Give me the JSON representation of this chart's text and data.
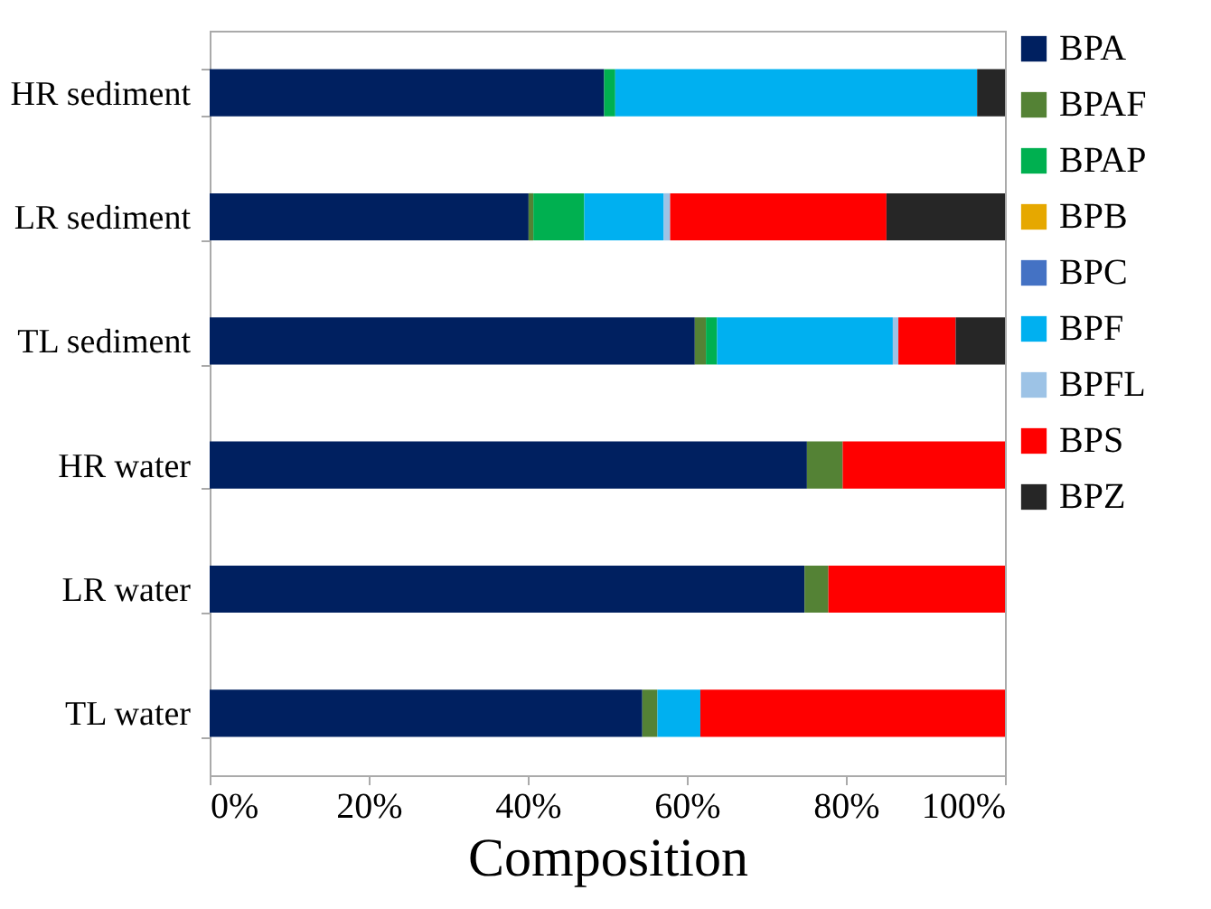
{
  "chart_data": {
    "type": "bar",
    "orientation": "horizontal",
    "stacked": true,
    "xlabel": "Composition",
    "categories": [
      "HR sediment",
      "LR sediment",
      "TL sediment",
      "HR water",
      "LR water",
      "TL water"
    ],
    "series": [
      {
        "name": "BPA",
        "color": "#002060",
        "values": [
          49.6,
          40.1,
          61.0,
          75.1,
          74.8,
          54.4
        ]
      },
      {
        "name": "BPAF",
        "color": "#548235",
        "values": [
          0,
          0.6,
          1.4,
          4.5,
          3.0,
          1.9
        ]
      },
      {
        "name": "BPAP",
        "color": "#00b050",
        "values": [
          1.4,
          6.4,
          1.4,
          0,
          0,
          0
        ]
      },
      {
        "name": "BPB",
        "color": "#e6a800",
        "values": [
          0,
          0,
          0,
          0,
          0,
          0
        ]
      },
      {
        "name": "BPC",
        "color": "#4472c4",
        "values": [
          0,
          0,
          0,
          0,
          0,
          0
        ]
      },
      {
        "name": "BPF",
        "color": "#00b0f0",
        "values": [
          45.5,
          10.0,
          22.1,
          0,
          0,
          5.4
        ]
      },
      {
        "name": "BPFL",
        "color": "#9dc3e6",
        "values": [
          0,
          0.8,
          0.7,
          0,
          0,
          0
        ]
      },
      {
        "name": "BPS",
        "color": "#ff0000",
        "values": [
          0,
          27.2,
          7.2,
          20.4,
          22.2,
          38.3
        ]
      },
      {
        "name": "BPZ",
        "color": "#262626",
        "values": [
          3.5,
          14.9,
          6.2,
          0,
          0,
          0
        ]
      }
    ],
    "xlim": [
      0,
      100
    ],
    "xticks": [
      {
        "value": 0,
        "label": "0%"
      },
      {
        "value": 20,
        "label": "20%"
      },
      {
        "value": 40,
        "label": "40%"
      },
      {
        "value": 60,
        "label": "60%"
      },
      {
        "value": 80,
        "label": "80%"
      },
      {
        "value": 100,
        "label": "100%"
      }
    ],
    "grid": false,
    "legend": "right"
  }
}
